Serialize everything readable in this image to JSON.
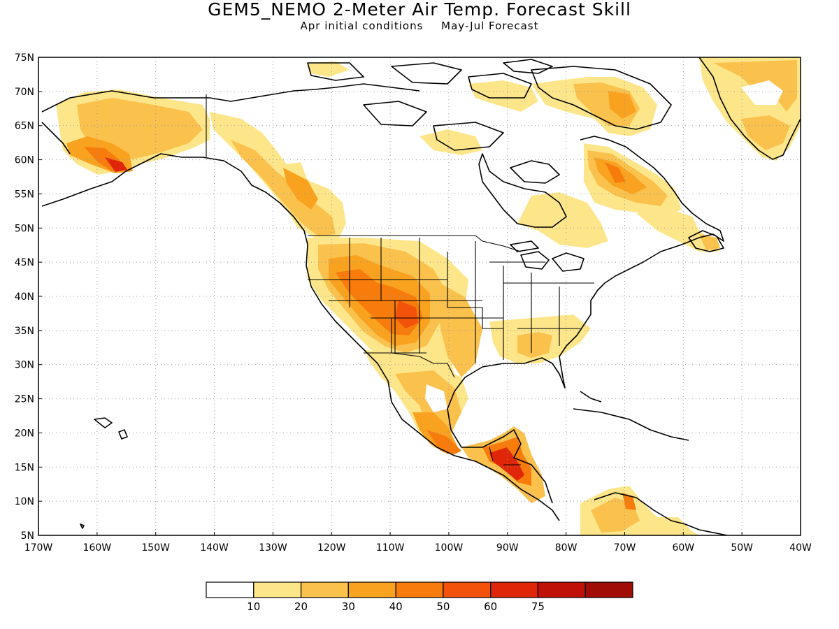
{
  "title": "GEM5_NEMO 2-Meter Air Temp. Forecast Skill",
  "subtitle_left": "Apr initial conditions",
  "subtitle_right": "May-Jul Forecast",
  "map": {
    "lon_min": -170,
    "lon_max": -40,
    "lat_min": 5,
    "lat_max": 75,
    "lon_ticks": [
      "170W",
      "160W",
      "150W",
      "140W",
      "130W",
      "120W",
      "110W",
      "100W",
      "90W",
      "80W",
      "70W",
      "60W",
      "50W",
      "40W"
    ],
    "lat_ticks": [
      "75N",
      "70N",
      "65N",
      "60N",
      "55N",
      "50N",
      "45N",
      "40N",
      "35N",
      "30N",
      "25N",
      "20N",
      "15N",
      "10N",
      "5N"
    ],
    "grid": "dotted"
  },
  "colorbar": {
    "colors": [
      "#ffffff",
      "#fde68a",
      "#fbc14d",
      "#f9a21f",
      "#f77c0c",
      "#f2520a",
      "#e02608",
      "#c01108",
      "#a00c06"
    ],
    "labels": [
      "10",
      "20",
      "30",
      "40",
      "50",
      "60",
      "75"
    ]
  },
  "icons": {
    "coastlines": "coastline-lines",
    "borders": "political-boundaries"
  }
}
